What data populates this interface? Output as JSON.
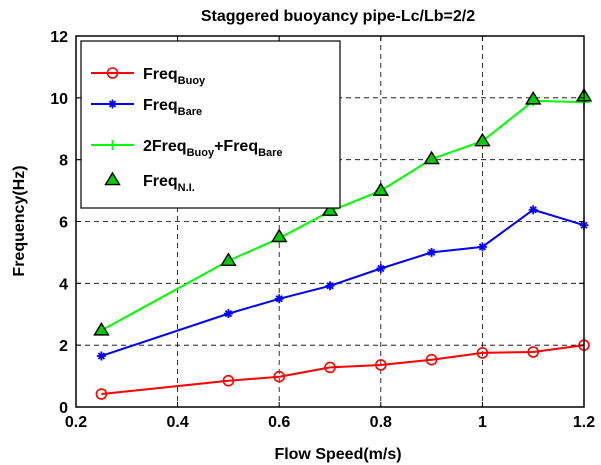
{
  "chart_data": {
    "type": "line",
    "title": "Staggered buoyancy pipe-Lc/Lb=2/2",
    "xlabel": "Flow Speed(m/s)",
    "ylabel": "Frequency(Hz)",
    "xlim": [
      0.2,
      1.2
    ],
    "ylim": [
      0,
      12
    ],
    "xticks": [
      "0.2",
      "0.4",
      "0.6",
      "0.8",
      "1",
      "1.2"
    ],
    "yticks": [
      "0",
      "2",
      "4",
      "6",
      "8",
      "10",
      "12"
    ],
    "grid": true,
    "legend_position": "top-left",
    "series": [
      {
        "name": "FreqBuoy",
        "legend": {
          "base": "Freq",
          "sub": "Buoy"
        },
        "color": "#ff0000",
        "marker": "circle",
        "line": true,
        "x": [
          0.25,
          0.5,
          0.6,
          0.7,
          0.8,
          0.9,
          1.0,
          1.1,
          1.2
        ],
        "y": [
          0.42,
          0.85,
          0.98,
          1.28,
          1.36,
          1.53,
          1.75,
          1.78,
          2.0
        ]
      },
      {
        "name": "FreqBare",
        "legend": {
          "base": "Freq",
          "sub": "Bare"
        },
        "color": "#0000ff",
        "marker": "star",
        "line": true,
        "x": [
          0.25,
          0.5,
          0.6,
          0.7,
          0.8,
          0.9,
          1.0,
          1.1,
          1.2
        ],
        "y": [
          1.65,
          3.02,
          3.5,
          3.92,
          4.48,
          5.0,
          5.18,
          6.38,
          5.88
        ]
      },
      {
        "name": "2FreqBuoy+FreqBare",
        "legend": {
          "parts": [
            {
              "t": "2Freq",
              "sub": false
            },
            {
              "t": "Buoy",
              "sub": true
            },
            {
              "t": "+Freq",
              "sub": false
            },
            {
              "t": "Bare",
              "sub": true
            }
          ]
        },
        "color": "#00ff00",
        "marker": "plus",
        "line": true,
        "x": [
          0.25,
          0.5,
          0.6,
          0.7,
          0.8,
          0.9,
          1.0,
          1.1,
          1.2
        ],
        "y": [
          2.48,
          4.73,
          5.46,
          6.33,
          7.0,
          8.02,
          8.6,
          9.9,
          9.86
        ]
      },
      {
        "name": "FreqN.I.",
        "legend": {
          "base": "Freq",
          "sub": "N.I."
        },
        "color": "#000000",
        "fill": "#00cc00",
        "marker": "triangle",
        "line": false,
        "x": [
          0.25,
          0.5,
          0.6,
          0.7,
          0.8,
          0.9,
          1.0,
          1.1,
          1.2
        ],
        "y": [
          2.48,
          4.73,
          5.5,
          6.35,
          7.0,
          8.02,
          8.6,
          9.95,
          10.05
        ]
      }
    ]
  }
}
